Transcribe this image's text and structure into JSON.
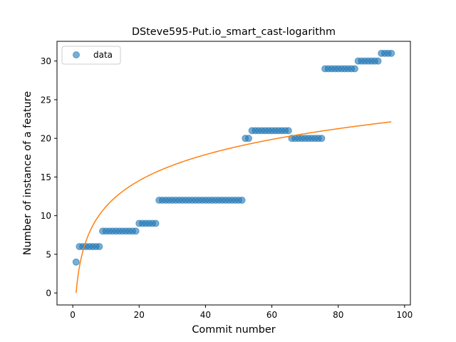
{
  "chart_data": {
    "type": "scatter",
    "title": "DSteve595-Put.io_smart_cast-logarithm",
    "xlabel": "Commit number",
    "ylabel": "Number of instance of a feature",
    "xlim": [
      -4.75,
      101.75
    ],
    "ylim": [
      -1.55,
      32.55
    ],
    "xticks": [
      0,
      20,
      40,
      60,
      80,
      100
    ],
    "yticks": [
      0,
      5,
      10,
      15,
      20,
      25,
      30
    ],
    "grid": false,
    "legend": {
      "placement": "top-left",
      "entries": [
        "data"
      ]
    },
    "colors": {
      "data": "#1f77b4",
      "fit": "#ff7f0e"
    },
    "series": [
      {
        "name": "data",
        "kind": "scatter",
        "x": [
          1,
          2,
          3,
          4,
          5,
          6,
          7,
          8,
          9,
          10,
          11,
          12,
          13,
          14,
          15,
          16,
          17,
          18,
          19,
          20,
          21,
          22,
          23,
          24,
          25,
          26,
          27,
          28,
          29,
          30,
          31,
          32,
          33,
          34,
          35,
          36,
          37,
          38,
          39,
          40,
          41,
          42,
          43,
          44,
          45,
          46,
          47,
          48,
          49,
          50,
          51,
          52,
          53,
          54,
          55,
          56,
          57,
          58,
          59,
          60,
          61,
          62,
          63,
          64,
          65,
          66,
          67,
          68,
          69,
          70,
          71,
          72,
          73,
          74,
          75,
          76,
          77,
          78,
          79,
          80,
          81,
          82,
          83,
          84,
          85,
          86,
          87,
          88,
          89,
          90,
          91,
          92,
          93,
          94,
          95,
          96
        ],
        "y": [
          4,
          6,
          6,
          6,
          6,
          6,
          6,
          6,
          8,
          8,
          8,
          8,
          8,
          8,
          8,
          8,
          8,
          8,
          8,
          9,
          9,
          9,
          9,
          9,
          9,
          12,
          12,
          12,
          12,
          12,
          12,
          12,
          12,
          12,
          12,
          12,
          12,
          12,
          12,
          12,
          12,
          12,
          12,
          12,
          12,
          12,
          12,
          12,
          12,
          12,
          12,
          20,
          20,
          21,
          21,
          21,
          21,
          21,
          21,
          21,
          21,
          21,
          21,
          21,
          21,
          20,
          20,
          20,
          20,
          20,
          20,
          20,
          20,
          20,
          20,
          29,
          29,
          29,
          29,
          29,
          29,
          29,
          29,
          29,
          29,
          30,
          30,
          30,
          30,
          30,
          30,
          30,
          31,
          31,
          31,
          31
        ]
      },
      {
        "name": "",
        "kind": "line",
        "function": "y = 4.85 * ln(x)",
        "x_range": [
          1,
          96
        ]
      }
    ]
  }
}
